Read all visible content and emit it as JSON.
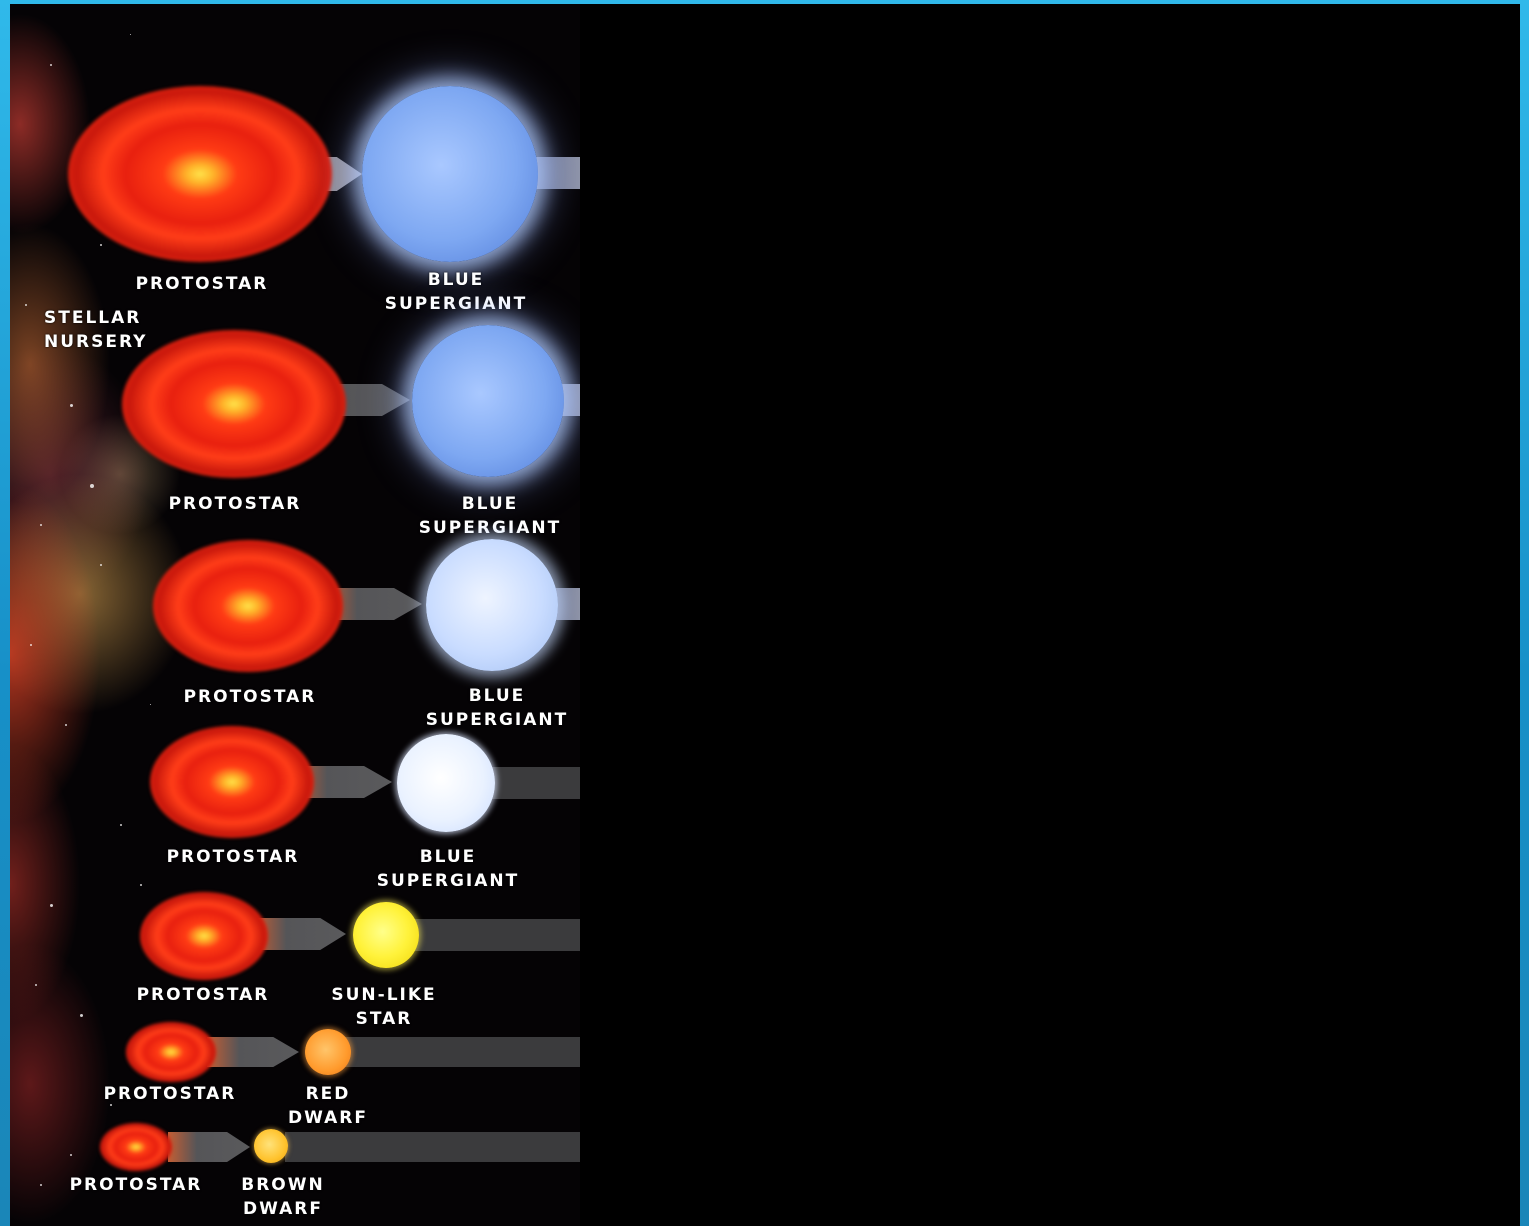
{
  "nursery_label": [
    "STELLAR",
    "NURSERY"
  ],
  "rows": [
    {
      "protostar_label": "PROTOSTAR",
      "outcome": "blue-supergiant",
      "outcome_label": [
        "BLUE",
        "SUPERGIANT"
      ]
    },
    {
      "protostar_label": "PROTOSTAR",
      "outcome": "blue-supergiant",
      "outcome_label": [
        "BLUE",
        "SUPERGIANT"
      ]
    },
    {
      "protostar_label": "PROTOSTAR",
      "outcome": "blue-supergiant",
      "outcome_label": [
        "BLUE",
        "SUPERGIANT"
      ]
    },
    {
      "protostar_label": "PROTOSTAR",
      "outcome": "blue-supergiant",
      "outcome_label": [
        "BLUE",
        "SUPERGIANT"
      ]
    },
    {
      "protostar_label": "PROTOSTAR",
      "outcome": "sun-like-star",
      "outcome_label": [
        "SUN-LIKE",
        "STAR"
      ]
    },
    {
      "protostar_label": "PROTOSTAR",
      "outcome": "red-dwarf",
      "outcome_label": [
        "RED",
        "DWARF"
      ]
    },
    {
      "protostar_label": "PROTOSTAR",
      "outcome": "brown-dwarf",
      "outcome_label": [
        "BROWN",
        "DWARF"
      ]
    }
  ],
  "colors": {
    "frame": "#1aa3d9",
    "background": "#000000",
    "lane": "#3b3b3d",
    "protostar_core": "#ffe24a",
    "protostar_shell": "#e8200f",
    "blue_supergiant": "#7ea8f2",
    "sun_like_star": "#fff23a",
    "red_dwarf": "#ff9a2c",
    "brown_dwarf": "#ffc22c"
  }
}
